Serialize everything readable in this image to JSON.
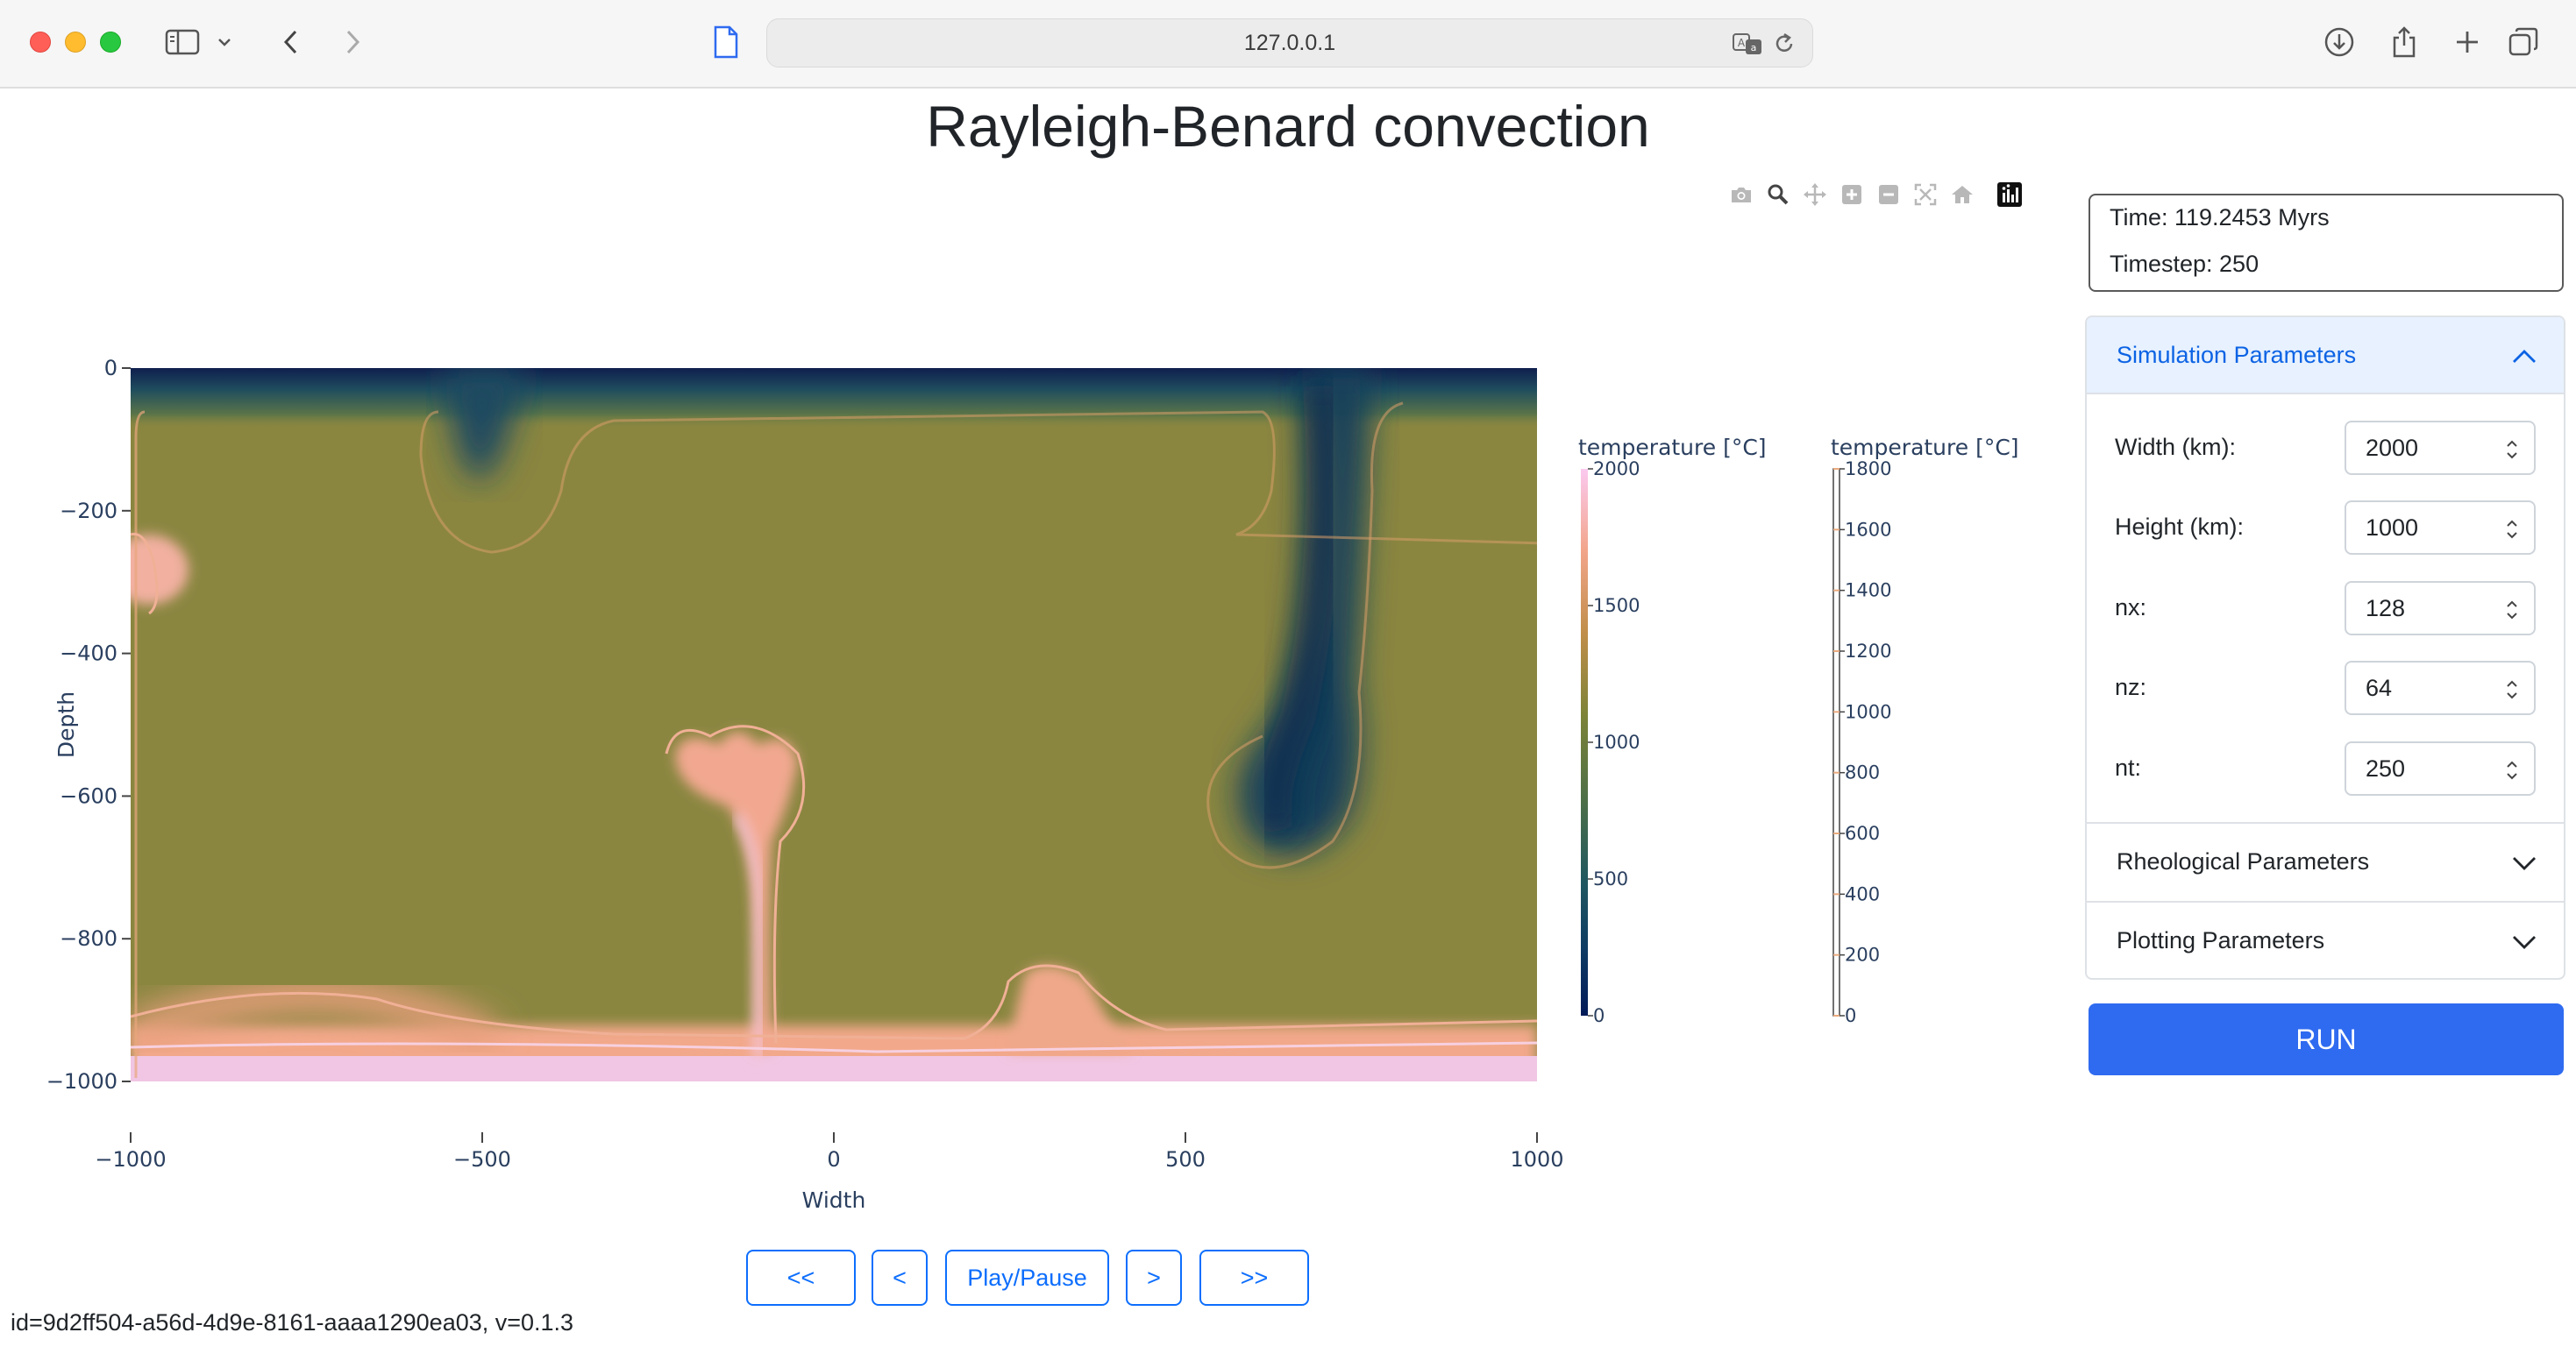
{
  "browser": {
    "url": "127.0.0.1",
    "icons": [
      "sidebar-icon",
      "chevron-down-icon",
      "back-icon",
      "forward-icon",
      "page-icon",
      "translate-icon",
      "reload-icon",
      "download-icon",
      "share-icon",
      "new-tab-icon",
      "tabs-icon"
    ]
  },
  "page": {
    "title": "Rayleigh-Benard convection",
    "footer_id": "id=9d2ff504-a56d-4d9e-8161-aaaa1290ea03, v=0.1.3"
  },
  "modebar": {
    "icons": [
      "camera-icon",
      "zoom-icon",
      "pan-icon",
      "zoom-in-icon",
      "zoom-out-icon",
      "autoscale-icon",
      "home-icon",
      "plotly-logo-icon"
    ]
  },
  "controls": {
    "first": "<<",
    "prev": "<",
    "play": "Play/Pause",
    "next": ">",
    "last": ">>"
  },
  "status": {
    "time": "Time: 119.2453 Myrs",
    "timestep": "Timestep: 250"
  },
  "accordion": {
    "sim_header": "Simulation Parameters",
    "params": [
      {
        "label": "Width (km):",
        "value": "2000"
      },
      {
        "label": "Height (km):",
        "value": "1000"
      },
      {
        "label": "nx:",
        "value": "128"
      },
      {
        "label": "nz:",
        "value": "64"
      },
      {
        "label": "nt:",
        "value": "250"
      }
    ],
    "rheo_header": "Rheological Parameters",
    "plot_header": "Plotting Parameters"
  },
  "run_label": "RUN",
  "chart_data": {
    "type": "heatmap",
    "xlabel": "Width",
    "ylabel": "Depth",
    "xlim": [
      -1000,
      1000
    ],
    "ylim": [
      -1000,
      0
    ],
    "xticks": [
      -1000,
      -500,
      0,
      500,
      1000
    ],
    "yticks": [
      0,
      -200,
      -400,
      -600,
      -800,
      -1000
    ],
    "colorbars": [
      {
        "title": "temperature [°C]",
        "range": [
          0,
          2000
        ],
        "ticks": [
          0,
          500,
          1000,
          1500,
          2000
        ],
        "colormap": "batlow"
      },
      {
        "title": "temperature [°C]",
        "range": [
          0,
          1800
        ],
        "ticks": [
          0,
          200,
          400,
          600,
          800,
          1000,
          1200,
          1400,
          1600,
          1800
        ],
        "style": "contour"
      }
    ],
    "colors": {
      "interior": "#8a8640",
      "cold": "#0f2455",
      "hot": "#f3a486",
      "hottest": "#f1c8e6",
      "contour": "#e9aa7e"
    },
    "features": [
      {
        "kind": "cold boundary layer",
        "depth": [
          0,
          -60
        ]
      },
      {
        "kind": "cold downwelling",
        "x": 670,
        "depth": [
          0,
          -700
        ]
      },
      {
        "kind": "cold drip",
        "x": -500,
        "depth": [
          0,
          -180
        ]
      },
      {
        "kind": "hot plume",
        "x": -100,
        "depth": [
          -1000,
          -580
        ]
      },
      {
        "kind": "hot plume",
        "x": 320,
        "depth": [
          -1000,
          -850
        ]
      },
      {
        "kind": "hot corner",
        "x": -1000,
        "depth": [
          -250,
          -380
        ]
      },
      {
        "kind": "hot boundary layer",
        "depth": [
          -940,
          -1000
        ]
      }
    ]
  }
}
